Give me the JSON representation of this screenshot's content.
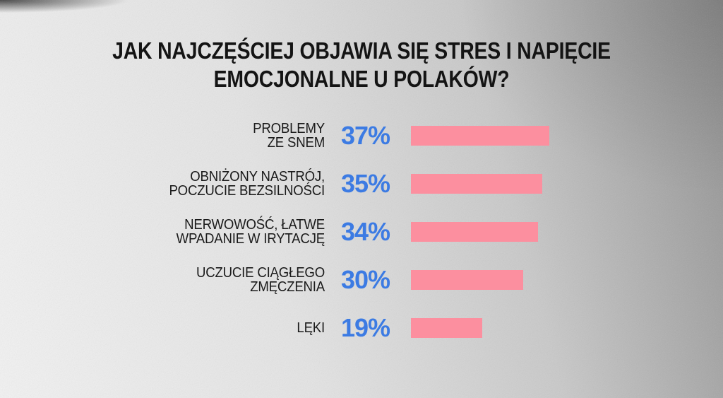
{
  "title": {
    "line1": "JAK NAJCZĘŚCIEJ OBJAWIA SIĘ STRES I NAPIĘCIE",
    "line2": "EMOCJONALNE U POLAKÓW?"
  },
  "colors": {
    "title_text": "#141414",
    "label_text": "#1a1a1a",
    "value_blue": "#3C7BE3",
    "bar_pink": "#FC8F9F",
    "background_light": "#f2f2f2",
    "background_dark": "#8f8f8f"
  },
  "rows": [
    {
      "label": "PROBLEMY\nZE SNEM",
      "value": 37,
      "value_label": "37%"
    },
    {
      "label": "OBNIŻONY NASTRÓJ,\nPOCZUCIE BEZSILNOŚCI",
      "value": 35,
      "value_label": "35%"
    },
    {
      "label": "NERWOWOŚĆ, ŁATWE\nWPADANIE W IRYTACJĘ",
      "value": 34,
      "value_label": "34%"
    },
    {
      "label": "UCZUCIE CIĄGŁEGO\nZMĘCZENIA",
      "value": 30,
      "value_label": "30%"
    },
    {
      "label": "LĘKI",
      "value": 19,
      "value_label": "19%"
    }
  ],
  "chart_data": {
    "type": "bar",
    "orientation": "horizontal",
    "title": "JAK NAJCZĘŚCIEJ OBJAWIA SIĘ STRES I NAPIĘCIE EMOCJONALNE U POLAKÓW?",
    "categories": [
      "PROBLEMY ZE SNEM",
      "OBNIŻONY NASTRÓJ, POCZUCIE BEZSILNOŚCI",
      "NERWOWOŚĆ, ŁATWE WPADANIE W IRYTACJĘ",
      "UCZUCIE CIĄGŁEGO ZMĘCZENIA",
      "LĘKI"
    ],
    "values": [
      37,
      35,
      34,
      30,
      19
    ],
    "value_labels": [
      "37%",
      "35%",
      "34%",
      "30%",
      "19%"
    ],
    "unit": "%",
    "xlim": [
      0,
      40
    ],
    "grid": false,
    "legend": false,
    "bar_color": "#FC8F9F",
    "value_label_color": "#3C7BE3"
  }
}
